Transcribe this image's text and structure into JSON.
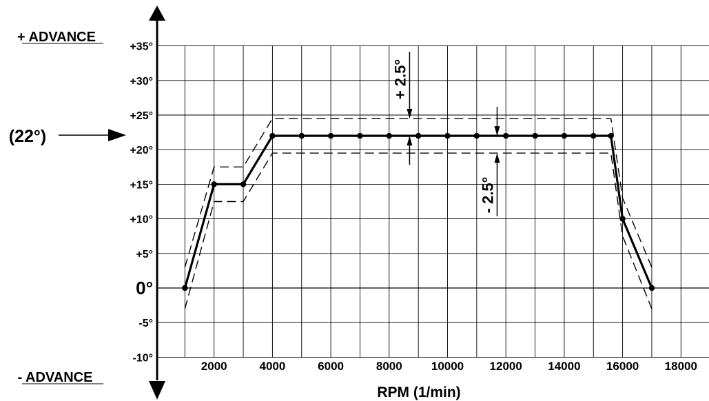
{
  "chart_data": {
    "type": "line",
    "title": "",
    "xlabel": "RPM  (1/min)",
    "ylabel": "",
    "advance_top_label": "+ ADVANCE",
    "advance_bottom_label": "- ADVANCE",
    "xlim": [
      0,
      18000
    ],
    "ylim": [
      -10,
      35
    ],
    "x_ticks": [
      2000,
      4000,
      6000,
      8000,
      10000,
      12000,
      14000,
      16000,
      18000
    ],
    "x_tick_labels": [
      "2000",
      "4000",
      "6000",
      "8000",
      "10000",
      "12000",
      "14000",
      "16000",
      "18000"
    ],
    "y_ticks": [
      35,
      30,
      25,
      20,
      15,
      10,
      5,
      0,
      -5,
      -10
    ],
    "y_tick_labels": [
      "+35°",
      "+30°",
      "+25°",
      "+20°",
      "+15°",
      "+10°",
      "+5°",
      "0°",
      "-5°",
      "-10°"
    ],
    "grid": true,
    "series": [
      {
        "values_x": [
          1000,
          2000,
          3000,
          4000,
          5000,
          6000,
          7000,
          8000,
          9000,
          10000,
          11000,
          12000,
          13000,
          14000,
          15000,
          15600,
          16000,
          17000
        ],
        "values_y": [
          0,
          15,
          15,
          22,
          22,
          22,
          22,
          22,
          22,
          22,
          22,
          22,
          22,
          22,
          22,
          22,
          10,
          0
        ],
        "style": "solid",
        "markers": true
      },
      {
        "values_x": [
          1000,
          2000,
          3000,
          4000,
          15600,
          16000,
          17000
        ],
        "values_y": [
          3,
          17.5,
          17.5,
          24.5,
          24.5,
          13,
          3
        ],
        "style": "dashed",
        "role": "upper tolerance"
      },
      {
        "values_x": [
          1000,
          2000,
          3000,
          4000,
          15600,
          16000,
          17000
        ],
        "values_y": [
          -3,
          12.5,
          12.5,
          19.5,
          19.5,
          7.5,
          -3
        ],
        "style": "dashed",
        "role": "lower tolerance"
      }
    ],
    "annotations": [
      {
        "text": "(22°)",
        "pointer": "arrow",
        "target_y": 22
      },
      {
        "text": "+ 2.5°",
        "at_x": 8700,
        "from_y": 22,
        "to_y": 24.5
      },
      {
        "text": "- 2.5°",
        "at_x": 11700,
        "from_y": 22,
        "to_y": 19.5
      }
    ]
  }
}
